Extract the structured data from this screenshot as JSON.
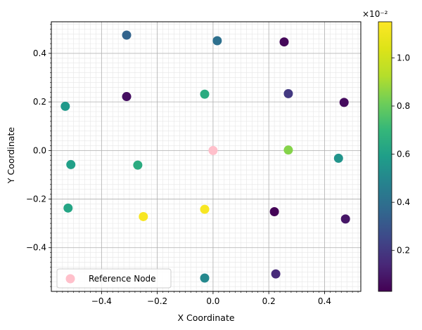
{
  "chart_data": {
    "type": "scatter",
    "xlabel": "X Coordinate",
    "ylabel": "Y Coordinate",
    "xlim": [
      -0.58,
      0.53
    ],
    "ylim": [
      -0.58,
      0.53
    ],
    "x_ticks": [
      -0.4,
      -0.2,
      0.0,
      0.2,
      0.4
    ],
    "x_tick_labels": [
      "−0.4",
      "−0.2",
      "0.0",
      "0.2",
      "0.4"
    ],
    "y_ticks": [
      -0.4,
      -0.2,
      0.0,
      0.2,
      0.4
    ],
    "y_tick_labels": [
      "−0.4",
      "−0.2",
      "0.0",
      "0.2",
      "0.4"
    ],
    "grid": "major and minor",
    "colormap": "viridis",
    "colorbar": {
      "range": [
        0.0003,
        0.0115
      ],
      "ticks": [
        0.002,
        0.004,
        0.006,
        0.008,
        0.01
      ],
      "tick_labels": [
        "0.2",
        "0.4",
        "0.6",
        "0.8",
        "1.0"
      ],
      "multiplier_label": "×10⁻²"
    },
    "points": [
      {
        "x": -0.31,
        "y": 0.475,
        "value": 0.0035
      },
      {
        "x": 0.015,
        "y": 0.452,
        "value": 0.004
      },
      {
        "x": 0.255,
        "y": 0.447,
        "value": 0.0005
      },
      {
        "x": -0.31,
        "y": 0.222,
        "value": 0.0007
      },
      {
        "x": -0.03,
        "y": 0.232,
        "value": 0.0065
      },
      {
        "x": 0.27,
        "y": 0.234,
        "value": 0.002
      },
      {
        "x": 0.47,
        "y": 0.198,
        "value": 0.0006
      },
      {
        "x": -0.53,
        "y": 0.182,
        "value": 0.0057
      },
      {
        "x": -0.51,
        "y": -0.058,
        "value": 0.006
      },
      {
        "x": -0.27,
        "y": -0.06,
        "value": 0.0065
      },
      {
        "x": 0.27,
        "y": 0.002,
        "value": 0.0085
      },
      {
        "x": 0.45,
        "y": -0.032,
        "value": 0.0055
      },
      {
        "x": -0.52,
        "y": -0.237,
        "value": 0.0062
      },
      {
        "x": -0.25,
        "y": -0.272,
        "value": 0.0113
      },
      {
        "x": -0.03,
        "y": -0.242,
        "value": 0.0113
      },
      {
        "x": 0.22,
        "y": -0.252,
        "value": 0.0004
      },
      {
        "x": 0.475,
        "y": -0.282,
        "value": 0.0009
      },
      {
        "x": 0.225,
        "y": -0.508,
        "value": 0.0015
      },
      {
        "x": -0.03,
        "y": -0.525,
        "value": 0.005
      }
    ],
    "reference_node": {
      "x": 0.0,
      "y": 0.0,
      "color": "#ffc0cb"
    },
    "legend": {
      "label": "Reference Node",
      "position": "lower-left"
    }
  }
}
